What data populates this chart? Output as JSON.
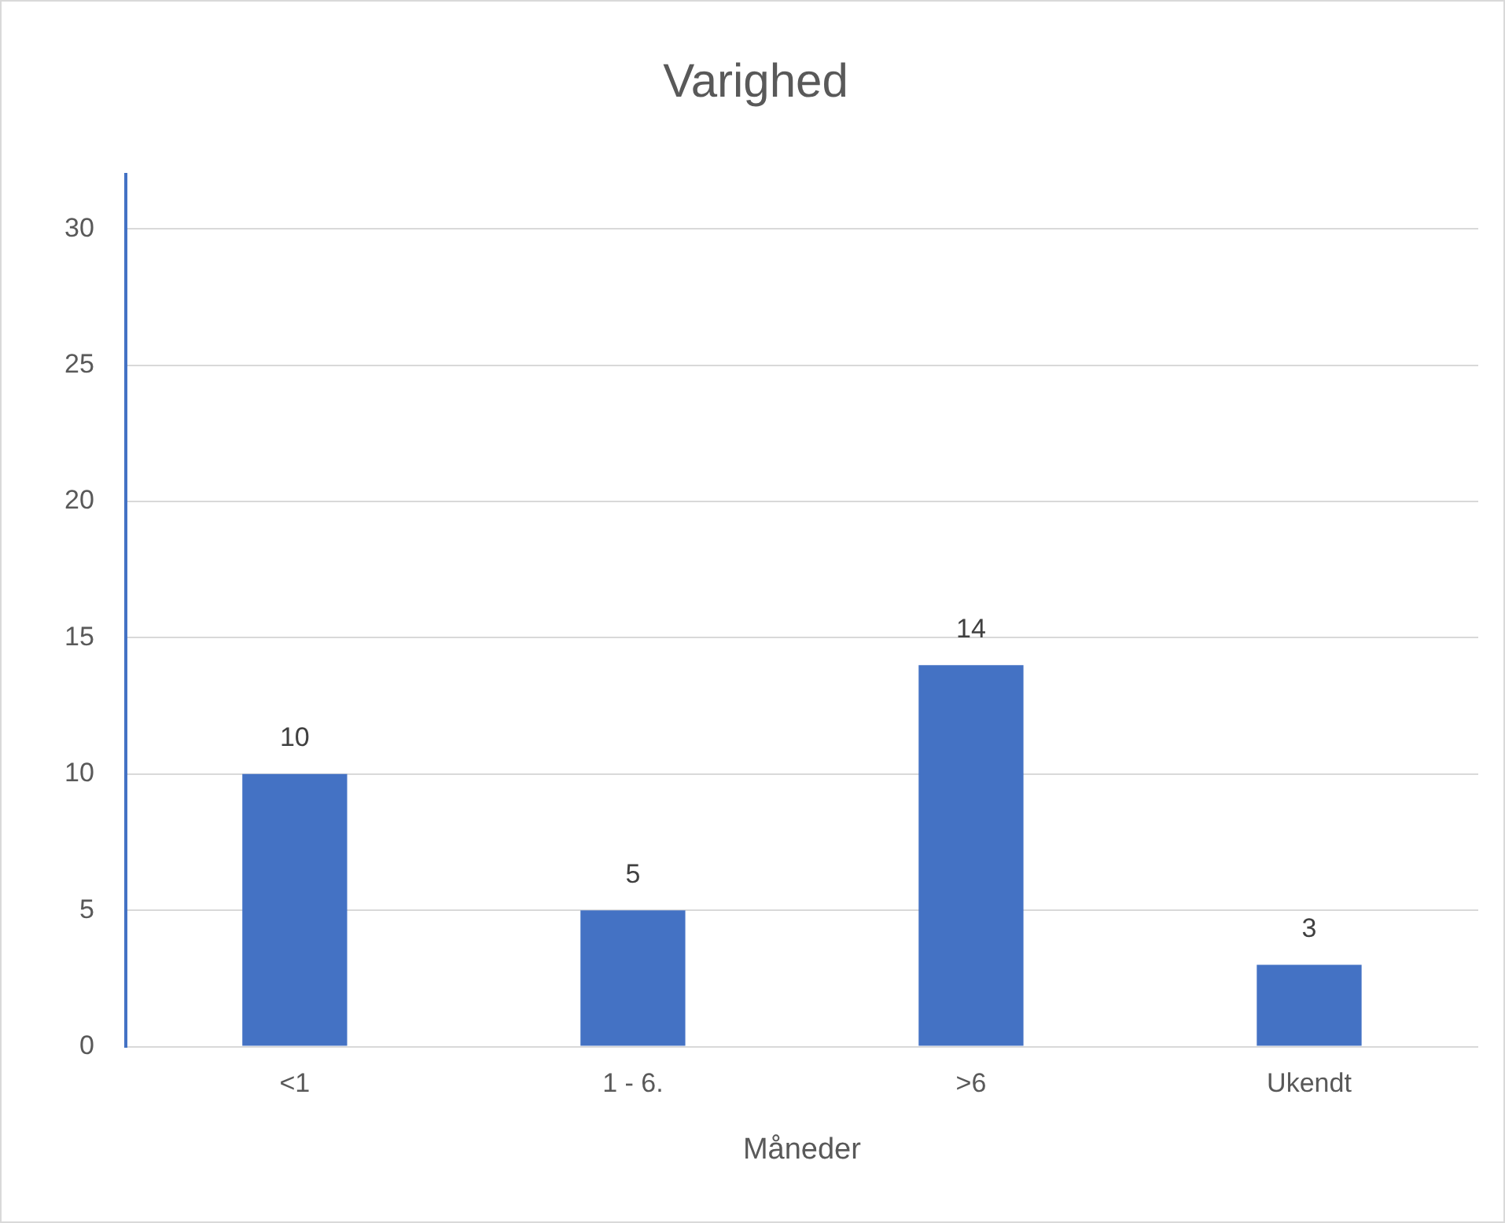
{
  "chart_data": {
    "type": "bar",
    "title": "Varighed",
    "xlabel": "Måneder",
    "categories": [
      "<1",
      "1 - 6.",
      ">6",
      "Ukendt"
    ],
    "values": [
      10,
      5,
      14,
      3
    ],
    "color": "#4472c4",
    "ylim": [
      0,
      32
    ],
    "yticks": [
      0,
      5,
      10,
      15,
      20,
      25,
      30
    ],
    "grid": "y",
    "data_labels": true,
    "legend": false
  }
}
